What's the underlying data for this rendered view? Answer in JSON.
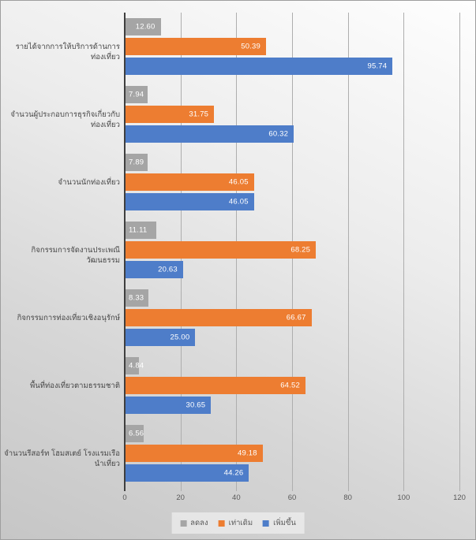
{
  "chart_data": {
    "type": "bar",
    "orientation": "horizontal",
    "title": "",
    "categories": [
      "รายได้จากการให้บริการด้านการท่องเที่ยว",
      "จำนวนผู้ประกอบการธุรกิจเกี่ยวกับท่องเที่ยว",
      "จำนวนนักท่องเที่ยว",
      "กิจกรรมการจัดงานประเพณีวัฒนธรรม",
      "กิจกรรมการท่องเที่ยวเชิงอนุรักษ์",
      "พื้นที่ท่องเที่ยวตามธรรมชาติ",
      "จำนวนรีสอร์ท โฮมสเตย์ โรงแรมเรือนำเที่ยว"
    ],
    "series": [
      {
        "name": "ลดลง",
        "color": "#A5A5A5",
        "values": [
          12.6,
          7.94,
          7.89,
          11.11,
          8.33,
          4.84,
          6.56
        ]
      },
      {
        "name": "เท่าเดิม",
        "color": "#ED7D31",
        "values": [
          50.39,
          31.75,
          46.05,
          68.25,
          66.67,
          64.52,
          49.18
        ]
      },
      {
        "name": "เพิ่มขึ้น",
        "color": "#4E7DC9",
        "values": [
          95.74,
          60.32,
          46.05,
          20.63,
          25.0,
          30.65,
          44.26
        ]
      }
    ],
    "x_ticks": [
      0,
      20,
      40,
      60,
      80,
      100,
      120
    ],
    "xlim": [
      0,
      120
    ],
    "grid": true,
    "legend_position": "bottom",
    "data_labels": true,
    "data_label_decimals": 2,
    "data_label_color": "#FFFFFF"
  },
  "colors": {
    "axis": "#3F3F3F",
    "gridline": "#AEAEAE",
    "tick_label": "#595959",
    "category_label": "#474747"
  }
}
